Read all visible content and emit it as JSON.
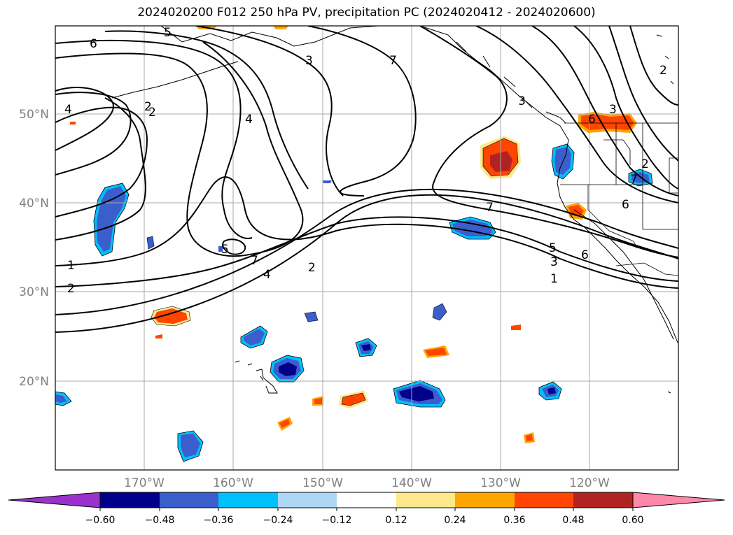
{
  "title": "2024020200 F012 250 hPa PV, precipitation PC (2024020412 - 2024020600)",
  "map": {
    "lon_range": [
      -180,
      -110
    ],
    "lat_range": [
      10,
      60
    ],
    "lat_labels": [
      "50°N",
      "40°N",
      "30°N",
      "20°N"
    ],
    "lon_labels": [
      "170°W",
      "160°W",
      "150°W",
      "140°W",
      "130°W",
      "120°W"
    ],
    "grid_color": "#aaaaaa"
  },
  "contour_labels": [
    "6",
    "5",
    "3",
    "7",
    "2",
    "4",
    "2",
    "4",
    "3",
    "6",
    "2",
    "7",
    "1",
    "2",
    "5",
    "7",
    "4",
    "2",
    "7",
    "5",
    "6",
    "3",
    "1",
    "6",
    "2",
    "3"
  ],
  "colorbar": {
    "ticks": [
      "−0.60",
      "−0.48",
      "−0.36",
      "−0.24",
      "−0.12",
      "0.12",
      "0.24",
      "0.36",
      "0.48",
      "0.60"
    ],
    "colors": [
      "#9932cc",
      "#00008b",
      "#3a5fcd",
      "#00bfff",
      "#add8f5",
      "#ffffff",
      "#ffe88a",
      "#ffa500",
      "#ff4500",
      "#b22222",
      "#ff88aa"
    ]
  }
}
